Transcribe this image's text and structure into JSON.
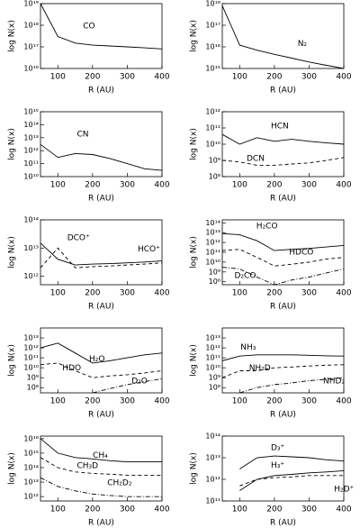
{
  "chart_data": [
    {
      "type": "line",
      "log_y": true,
      "xlabel": "R (AU)",
      "ylabel": "log N(x)",
      "x": [
        50,
        100,
        150,
        200,
        250,
        300,
        350,
        400
      ],
      "xlim": [
        50,
        400
      ],
      "xticks": [
        100,
        200,
        300,
        400
      ],
      "ylim": [
        1e+16,
        1e+19
      ],
      "yticks": [
        {
          "value": 1e+16,
          "label": "10¹⁶"
        },
        {
          "value": 1e+17,
          "label": "10¹⁷"
        },
        {
          "value": 1e+18,
          "label": "10¹⁸"
        },
        {
          "value": 1e+19,
          "label": "10¹⁹"
        }
      ],
      "series": [
        {
          "name": "CO",
          "color": "#000000",
          "dash": "solid",
          "values": [
            1e+19,
            3e+17,
            1.5e+17,
            1.2e+17,
            1.1e+17,
            1e+17,
            9e+16,
            8e+16
          ]
        }
      ]
    },
    {
      "type": "line",
      "log_y": true,
      "xlabel": "R (AU)",
      "ylabel": "log N(x)",
      "x": [
        50,
        100,
        150,
        200,
        250,
        300,
        350,
        400
      ],
      "xlim": [
        50,
        400
      ],
      "xticks": [
        100,
        200,
        300,
        400
      ],
      "ylim": [
        1000000000000000.0,
        1e+18
      ],
      "yticks": [
        {
          "value": 1000000000000000.0,
          "label": "10¹⁵"
        },
        {
          "value": 1e+16,
          "label": "10¹⁶"
        },
        {
          "value": 1e+17,
          "label": "10¹⁷"
        },
        {
          "value": 1e+18,
          "label": "10¹⁸"
        }
      ],
      "series": [
        {
          "name": "N₂",
          "color": "#000000",
          "dash": "solid",
          "values": [
            8e+17,
            1.2e+16,
            7000000000000000.0,
            4500000000000000.0,
            3000000000000000.0,
            2000000000000000.0,
            1400000000000000.0,
            1000000000000000.0
          ]
        }
      ]
    },
    {
      "type": "line",
      "log_y": true,
      "xlabel": "R (AU)",
      "ylabel": "log N(x)",
      "x": [
        50,
        100,
        150,
        200,
        250,
        300,
        350,
        400
      ],
      "xlim": [
        50,
        400
      ],
      "xticks": [
        100,
        200,
        300,
        400
      ],
      "ylim": [
        10000000000.0,
        1000000000000000.0
      ],
      "yticks": [
        {
          "value": 10000000000.0,
          "label": "10¹⁰"
        },
        {
          "value": 100000000000.0,
          "label": "10¹¹"
        },
        {
          "value": 1000000000000.0,
          "label": "10¹²"
        },
        {
          "value": 10000000000000.0,
          "label": "10¹³"
        },
        {
          "value": 100000000000000.0,
          "label": "10¹⁴"
        },
        {
          "value": 1000000000000000.0,
          "label": "10¹⁵"
        }
      ],
      "series": [
        {
          "name": "CN",
          "color": "#000000",
          "dash": "solid",
          "values": [
            3000000000000.0,
            300000000000.0,
            600000000000.0,
            500000000000.0,
            250000000000.0,
            100000000000.0,
            40000000000.0,
            30000000000.0
          ]
        }
      ]
    },
    {
      "type": "line",
      "log_y": true,
      "xlabel": "R (AU)",
      "ylabel": "log N(x)",
      "x": [
        50,
        100,
        150,
        200,
        250,
        300,
        350,
        400
      ],
      "xlim": [
        50,
        400
      ],
      "xticks": [
        100,
        200,
        300,
        400
      ],
      "ylim": [
        100000000.0,
        1000000000000.0
      ],
      "yticks": [
        {
          "value": 100000000.0,
          "label": "10⁸"
        },
        {
          "value": 1000000000.0,
          "label": "10⁹"
        },
        {
          "value": 10000000000.0,
          "label": "10¹⁰"
        },
        {
          "value": 100000000000.0,
          "label": "10¹¹"
        },
        {
          "value": 1000000000000.0,
          "label": "10¹²"
        }
      ],
      "series": [
        {
          "name": "HCN",
          "color": "#000000",
          "dash": "solid",
          "values": [
            40000000000.0,
            10000000000.0,
            25000000000.0,
            15000000000.0,
            20000000000.0,
            15000000000.0,
            12000000000.0,
            10000000000.0
          ]
        },
        {
          "name": "DCN",
          "color": "#000000",
          "dash": "dashed",
          "values": [
            1000000000.0,
            800000000.0,
            500000000.0,
            500000000.0,
            600000000.0,
            700000000.0,
            1000000000.0,
            1500000000.0
          ]
        }
      ]
    },
    {
      "type": "line",
      "log_y": true,
      "xlabel": "R (AU)",
      "ylabel": "log N(x)",
      "x": [
        50,
        100,
        150,
        200,
        250,
        300,
        350,
        400
      ],
      "xlim": [
        50,
        400
      ],
      "xticks": [
        100,
        200,
        300,
        400
      ],
      "ylim": [
        500000000000.0,
        100000000000000.0
      ],
      "yticks": [
        {
          "value": 1000000000000.0,
          "label": "10¹²"
        },
        {
          "value": 10000000000000.0,
          "label": "10¹³"
        },
        {
          "value": 100000000000000.0,
          "label": "10¹⁴"
        }
      ],
      "series": [
        {
          "name": "DCO⁺",
          "color": "#000000",
          "dash": "dashed",
          "values": [
            2000000000000.0,
            10000000000000.0,
            2000000000000.0,
            2200000000000.0,
            2300000000000.0,
            2500000000000.0,
            2700000000000.0,
            3000000000000.0
          ]
        },
        {
          "name": "HCO⁺",
          "color": "#000000",
          "dash": "solid",
          "values": [
            15000000000000.0,
            4000000000000.0,
            2500000000000.0,
            2700000000000.0,
            2800000000000.0,
            3000000000000.0,
            3200000000000.0,
            3500000000000.0
          ]
        }
      ]
    },
    {
      "type": "line",
      "log_y": true,
      "xlabel": "R (AU)",
      "ylabel": "log N(x)",
      "x": [
        50,
        100,
        150,
        200,
        250,
        300,
        350,
        400
      ],
      "xlim": [
        50,
        400
      ],
      "xticks": [
        100,
        200,
        300,
        400
      ],
      "ylim": [
        50000000.0,
        200000000000000.0
      ],
      "yticks": [
        {
          "value": 100000000.0,
          "label": "10⁸"
        },
        {
          "value": 1000000000.0,
          "label": "10⁹"
        },
        {
          "value": 10000000000.0,
          "label": "10¹⁰"
        },
        {
          "value": 100000000000.0,
          "label": "10¹¹"
        },
        {
          "value": 1000000000000.0,
          "label": "10¹²"
        },
        {
          "value": 10000000000000.0,
          "label": "10¹³"
        },
        {
          "value": 100000000000000.0,
          "label": "10¹⁴"
        }
      ],
      "series": [
        {
          "name": "H₂CO",
          "color": "#000000",
          "dash": "solid",
          "values": [
            8000000000000.0,
            6000000000000.0,
            1500000000000.0,
            150000000000.0,
            200000000000.0,
            250000000000.0,
            350000000000.0,
            500000000000.0
          ]
        },
        {
          "name": "HDCO",
          "color": "#000000",
          "dash": "dashed",
          "values": [
            150000000000.0,
            200000000000.0,
            30000000000.0,
            4000000000.0,
            6000000000.0,
            10000000000.0,
            20000000000.0,
            30000000000.0
          ]
        },
        {
          "name": "D₂CO",
          "color": "#000000",
          "dash": "dashdot",
          "values": [
            3000000000.0,
            2000000000.0,
            300000000.0,
            50000000.0,
            150000000.0,
            300000000.0,
            800000000.0,
            2000000000.0
          ]
        }
      ]
    },
    {
      "type": "line",
      "log_y": true,
      "xlabel": "R (AU)",
      "ylabel": "log N(x)",
      "x": [
        50,
        100,
        150,
        200,
        250,
        300,
        350,
        400
      ],
      "xlim": [
        50,
        400
      ],
      "xticks": [
        100,
        200,
        300,
        400
      ],
      "ylim": [
        30000000.0,
        100000000000000.0
      ],
      "yticks": [
        {
          "value": 100000000.0,
          "label": "10⁸"
        },
        {
          "value": 1000000000.0,
          "label": "10⁹"
        },
        {
          "value": 10000000000.0,
          "label": "10¹⁰"
        },
        {
          "value": 100000000000.0,
          "label": "10¹¹"
        },
        {
          "value": 1000000000000.0,
          "label": "10¹²"
        },
        {
          "value": 10000000000000.0,
          "label": "10¹³"
        }
      ],
      "series": [
        {
          "name": "H₂O",
          "color": "#000000",
          "dash": "solid",
          "values": [
            1000000000000.0,
            3000000000000.0,
            300000000000.0,
            30000000000.0,
            50000000000.0,
            100000000000.0,
            200000000000.0,
            300000000000.0
          ]
        },
        {
          "name": "HDO",
          "color": "#000000",
          "dash": "dashed",
          "values": [
            20000000000.0,
            30000000000.0,
            5000000000.0,
            1000000000.0,
            1500000000.0,
            2000000000.0,
            3000000000.0,
            5000000000.0
          ]
        },
        {
          "name": "D₂O",
          "color": "#000000",
          "dash": "dashdot",
          "values": [
            null,
            null,
            null,
            30000000.0,
            80000000.0,
            200000000.0,
            400000000.0,
            800000000.0
          ]
        }
      ]
    },
    {
      "type": "line",
      "log_y": true,
      "xlabel": "R (AU)",
      "ylabel": "log N(x)",
      "x": [
        50,
        100,
        150,
        200,
        250,
        300,
        350,
        400
      ],
      "xlim": [
        50,
        400
      ],
      "xticks": [
        100,
        200,
        300,
        400
      ],
      "ylim": [
        30000000.0,
        100000000000000.0
      ],
      "yticks": [
        {
          "value": 100000000.0,
          "label": "10⁸"
        },
        {
          "value": 1000000000.0,
          "label": "10⁹"
        },
        {
          "value": 10000000000.0,
          "label": "10¹⁰"
        },
        {
          "value": 100000000000.0,
          "label": "10¹¹"
        },
        {
          "value": 1000000000000.0,
          "label": "10¹²"
        },
        {
          "value": 10000000000000.0,
          "label": "10¹³"
        }
      ],
      "series": [
        {
          "name": "NH₃",
          "color": "#000000",
          "dash": "solid",
          "values": [
            50000000000.0,
            150000000000.0,
            200000000000.0,
            200000000000.0,
            200000000000.0,
            180000000000.0,
            160000000000.0,
            150000000000.0
          ]
        },
        {
          "name": "NH₂D",
          "color": "#000000",
          "dash": "dashed",
          "values": [
            1000000000.0,
            5000000000.0,
            5000000000.0,
            10000000000.0,
            12000000000.0,
            15000000000.0,
            18000000000.0,
            20000000000.0
          ]
        },
        {
          "name": "NHD₂",
          "color": "#000000",
          "dash": "dashdot",
          "values": [
            null,
            30000000.0,
            100000000.0,
            200000000.0,
            300000000.0,
            500000000.0,
            700000000.0,
            1000000000.0
          ]
        }
      ]
    },
    {
      "type": "line",
      "log_y": true,
      "xlabel": "R (AU)",
      "ylabel": "log N(x)",
      "x": [
        50,
        100,
        150,
        200,
        250,
        300,
        350,
        400
      ],
      "xlim": [
        50,
        400
      ],
      "xticks": [
        100,
        200,
        300,
        400
      ],
      "ylim": [
        500000000000.0,
        1.5e+16
      ],
      "yticks": [
        {
          "value": 1000000000000.0,
          "label": "10¹²"
        },
        {
          "value": 10000000000000.0,
          "label": "10¹³"
        },
        {
          "value": 100000000000000.0,
          "label": "10¹⁴"
        },
        {
          "value": 1000000000000000.0,
          "label": "10¹⁵"
        },
        {
          "value": 1e+16,
          "label": "10¹⁶"
        }
      ],
      "series": [
        {
          "name": "CH₄",
          "color": "#000000",
          "dash": "solid",
          "values": [
            1e+16,
            1000000000000000.0,
            500000000000000.0,
            400000000000000.0,
            300000000000000.0,
            250000000000000.0,
            250000000000000.0,
            250000000000000.0
          ]
        },
        {
          "name": "CH₃D",
          "color": "#000000",
          "dash": "dashed",
          "values": [
            500000000000000.0,
            100000000000000.0,
            50000000000000.0,
            40000000000000.0,
            35000000000000.0,
            30000000000000.0,
            30000000000000.0,
            30000000000000.0
          ]
        },
        {
          "name": "CH₂D₂",
          "color": "#000000",
          "dash": "dashdot",
          "values": [
            20000000000000.0,
            5000000000000.0,
            2500000000000.0,
            1500000000000.0,
            1200000000000.0,
            1000000000000.0,
            1000000000000.0,
            1000000000000.0
          ]
        }
      ]
    },
    {
      "type": "line",
      "log_y": true,
      "xlabel": "R (AU)",
      "ylabel": "log N(x)",
      "x": [
        50,
        100,
        150,
        200,
        250,
        300,
        350,
        400
      ],
      "xlim": [
        50,
        400
      ],
      "xticks": [
        100,
        200,
        300,
        400
      ],
      "ylim": [
        100000000000.0,
        100000000000000.0
      ],
      "yticks": [
        {
          "value": 100000000000.0,
          "label": "10¹¹"
        },
        {
          "value": 1000000000000.0,
          "label": "10¹²"
        },
        {
          "value": 10000000000000.0,
          "label": "10¹³"
        },
        {
          "value": 100000000000000.0,
          "label": "10¹⁴"
        }
      ],
      "series": [
        {
          "name": "D₃⁺",
          "color": "#000000",
          "dash": "solid",
          "values": [
            null,
            3000000000000.0,
            10000000000000.0,
            12000000000000.0,
            11000000000000.0,
            10000000000000.0,
            8000000000000.0,
            7000000000000.0
          ]
        },
        {
          "name": "H₃⁺",
          "color": "#000000",
          "dash": "solid",
          "values": [
            null,
            300000000000.0,
            1000000000000.0,
            1500000000000.0,
            1700000000000.0,
            2000000000000.0,
            2200000000000.0,
            2500000000000.0
          ]
        },
        {
          "name": "H₂D⁺",
          "color": "#000000",
          "dash": "dashed",
          "values": [
            null,
            500000000000.0,
            1000000000000.0,
            1200000000000.0,
            1300000000000.0,
            1500000000000.0,
            1500000000000.0,
            1500000000000.0
          ]
        }
      ]
    }
  ]
}
